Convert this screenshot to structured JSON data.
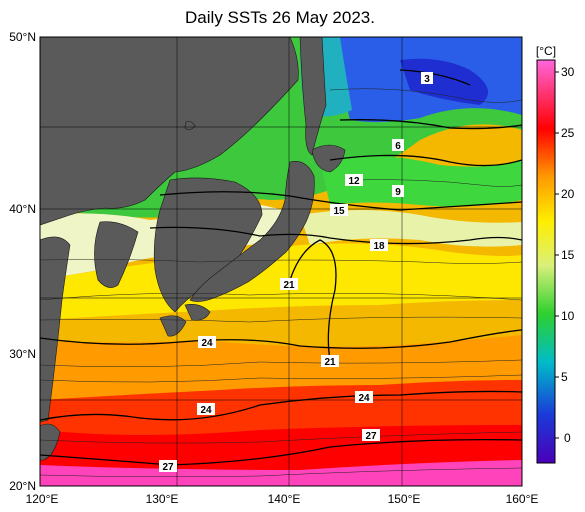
{
  "title": "Daily SSTs 26 May 2023.",
  "map": {
    "lat_labels": [
      "50°N",
      "40°N",
      "30°N",
      "20°N"
    ],
    "lon_labels": [
      "120°E",
      "130°E",
      "140°E",
      "150°E",
      "160°E"
    ],
    "contour_labels": [
      "3",
      "6",
      "12",
      "9",
      "15",
      "18",
      "21",
      "21",
      "24",
      "24",
      "24",
      "27",
      "27"
    ],
    "colors": {
      "land": "#5a5a5a",
      "contour": "#000000"
    }
  },
  "colorbar": {
    "unit": "[°C]",
    "ticks": [
      "30",
      "25",
      "20",
      "15",
      "10",
      "5",
      "0"
    ],
    "stops": [
      "#ff55cc",
      "#ff0000",
      "#ff9a00",
      "#ffee00",
      "#d9f07a",
      "#2ed02e",
      "#00bcc8",
      "#1a3ad8",
      "#4a00b8"
    ]
  }
}
